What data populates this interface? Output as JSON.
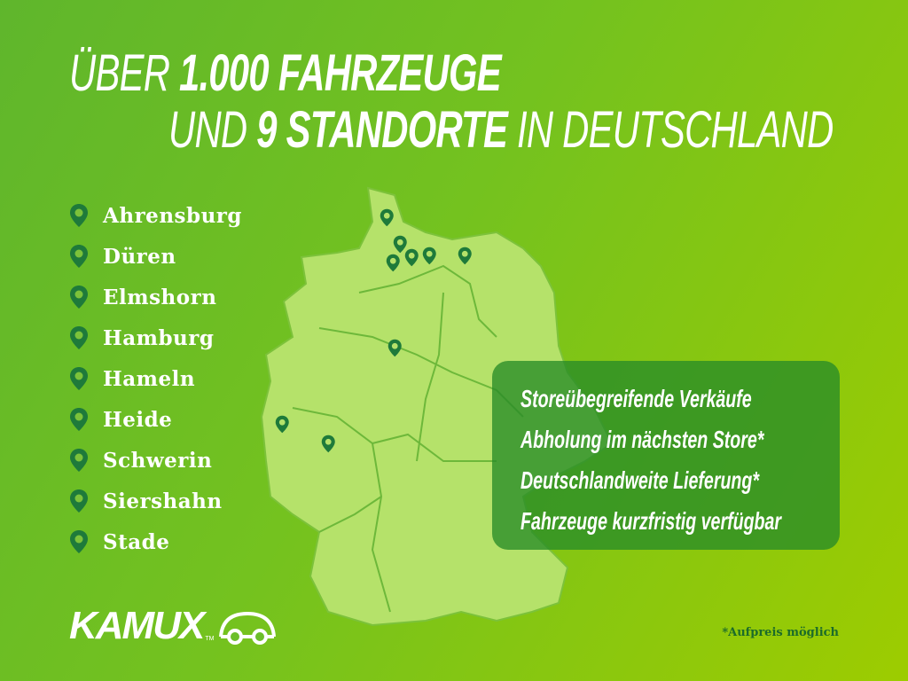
{
  "headline": {
    "line1_light": "ÜBER ",
    "line1_bold": "1.000 FAHRZEUGE",
    "line2_light": "UND ",
    "line2_bold": "9 STANDORTE",
    "line2_rest": " IN DEUTSCHLAND"
  },
  "locations": [
    "Ahrensburg",
    "Düren",
    "Elmshorn",
    "Hamburg",
    "Hameln",
    "Heide",
    "Schwerin",
    "Siershahn",
    "Stade"
  ],
  "features": [
    "Storeübegreifende Verkäufe",
    "Abholung im nächsten Store*",
    "Deutschlandweite Lieferung*",
    "Fahrzeuge kurzfristig verfügbar"
  ],
  "logo": {
    "text": "KAMUX",
    "tm": "TM"
  },
  "footnote": "*Aufpreis möglich",
  "colors": {
    "pin": "#1e7a3a",
    "map": "#b5e26a",
    "box": "#2f8c2f",
    "footnote": "#1c6b2a"
  },
  "icons": {
    "location": "map-pin-icon",
    "feature": "double-check-icon",
    "logo": "car-icon"
  }
}
